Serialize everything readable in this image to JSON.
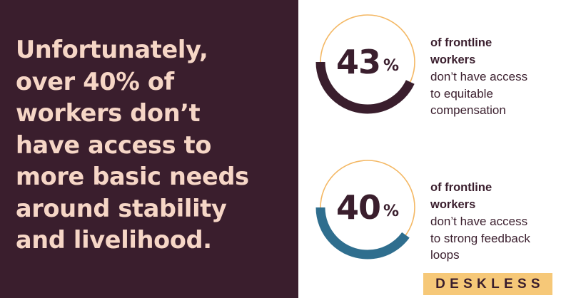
{
  "headline": {
    "lines": [
      "Unfortunately,",
      "over 40% of",
      "workers don’t",
      "have access to",
      "more basic needs",
      "around stability",
      "and livelihood."
    ]
  },
  "stats": [
    {
      "value": "43",
      "unit": "%",
      "fraction": 0.43,
      "ring_color": "#3a1e2d",
      "track_color": "#f4b864",
      "bold_lines": [
        "of frontline",
        "workers"
      ],
      "body_lines": [
        "don’t have access",
        "to equitable",
        "compensation"
      ]
    },
    {
      "value": "40",
      "unit": "%",
      "fraction": 0.4,
      "ring_color": "#2f6e8e",
      "track_color": "#f4b864",
      "bold_lines": [
        "of frontline",
        "workers"
      ],
      "body_lines": [
        "don’t have access",
        "to strong feedback",
        "loops"
      ]
    }
  ],
  "colors": {
    "left_background": "#3a1e2d",
    "headline_text": "#f6d6c6",
    "logo_background": "#f6c878"
  },
  "logo": {
    "text": "DESKLESS"
  }
}
